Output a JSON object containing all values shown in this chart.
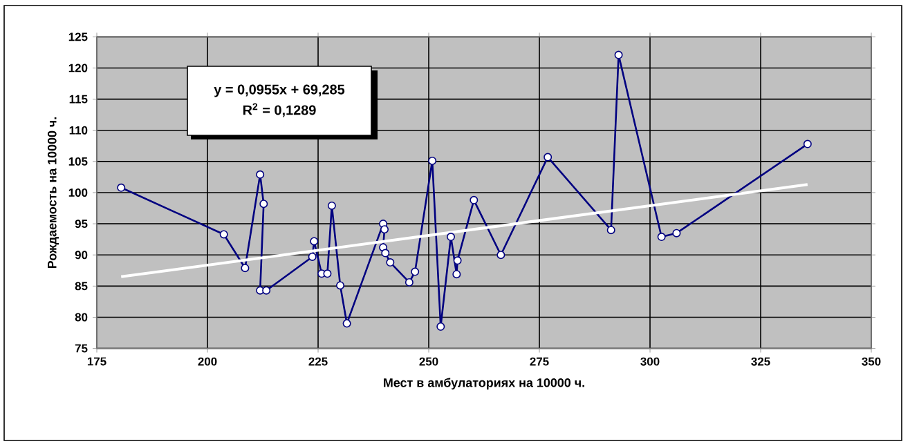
{
  "chart_data": {
    "type": "line",
    "xlabel": "Мест в амбулаториях на 10000 ч.",
    "ylabel": "Рождаемость на 10000 ч.",
    "annotations": [
      "y = 0,0955x + 69,285",
      "R$^{2}$ = 0,1289"
    ],
    "xlim": [
      175,
      350
    ],
    "xticks": [
      175,
      200,
      225,
      250,
      275,
      300,
      325,
      350
    ],
    "ylim": [
      75,
      125
    ],
    "yticks": [
      75,
      80,
      85,
      90,
      95,
      100,
      105,
      110,
      115,
      120,
      125
    ],
    "grid": true,
    "marker": "circle",
    "series": [
      {
        "color": "#000080",
        "x": [
          180.5,
          203.7,
          208.5,
          211.9,
          212.7,
          211.9,
          213.3,
          223.7,
          224.1,
          225.8,
          227.1,
          228.1,
          230.0,
          231.5,
          239.7,
          240.0,
          239.7,
          240.2,
          241.3,
          245.6,
          246.9,
          250.8,
          252.7,
          255.0,
          256.3,
          256.5,
          260.2,
          266.3,
          276.9,
          291.2,
          292.9,
          302.6,
          306.0,
          335.6
        ],
        "values": [
          100.8,
          93.3,
          87.9,
          102.9,
          98.2,
          84.3,
          84.3,
          89.7,
          92.2,
          87.0,
          87.0,
          97.9,
          85.1,
          79.0,
          95.0,
          94.1,
          91.2,
          90.3,
          88.8,
          85.6,
          87.3,
          105.1,
          78.5,
          92.9,
          86.9,
          89.1,
          98.8,
          90.0,
          105.7,
          94.0,
          122.1,
          92.9,
          93.5,
          107.8
        ]
      },
      {
        "color": "#ffffff",
        "marker": "none",
        "x": [
          180.5,
          335.6
        ],
        "values": [
          86.5,
          101.3
        ]
      }
    ]
  }
}
